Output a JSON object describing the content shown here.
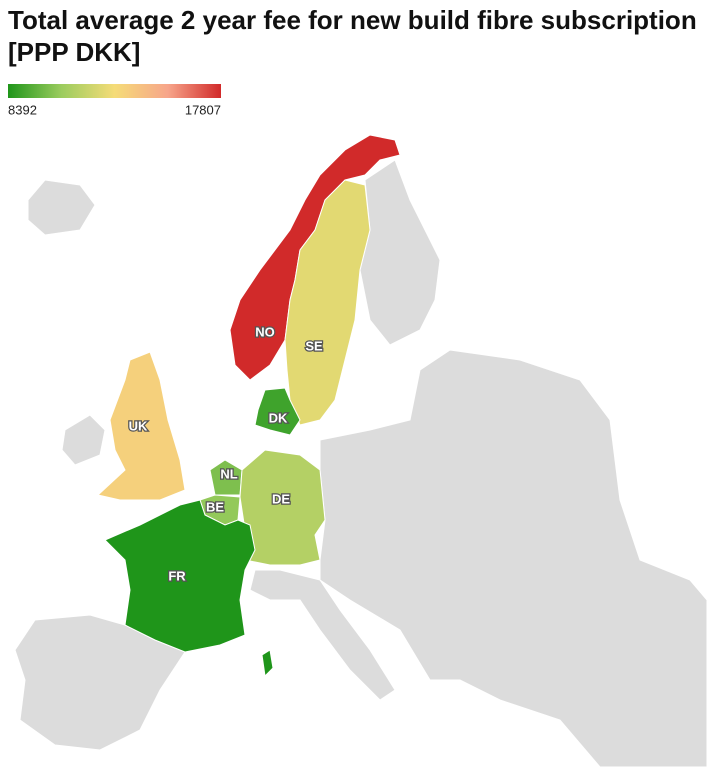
{
  "title": "Total average 2 year fee for new build fibre subscription [PPP DKK]",
  "legend": {
    "min": 8392,
    "max": 17807,
    "colors": [
      "#1f951a",
      "#9bcc5e",
      "#f5dc78",
      "#f7a58a",
      "#d12a2a"
    ]
  },
  "regions": [
    {
      "label": "NO",
      "value": 17807
    },
    {
      "label": "SE",
      "value": 12600
    },
    {
      "label": "UK",
      "value": 13600
    },
    {
      "label": "DK",
      "value": 9000
    },
    {
      "label": "NL",
      "value": 10200
    },
    {
      "label": "BE",
      "value": 10600
    },
    {
      "label": "DE",
      "value": 11400
    },
    {
      "label": "FR",
      "value": 8392
    }
  ]
}
